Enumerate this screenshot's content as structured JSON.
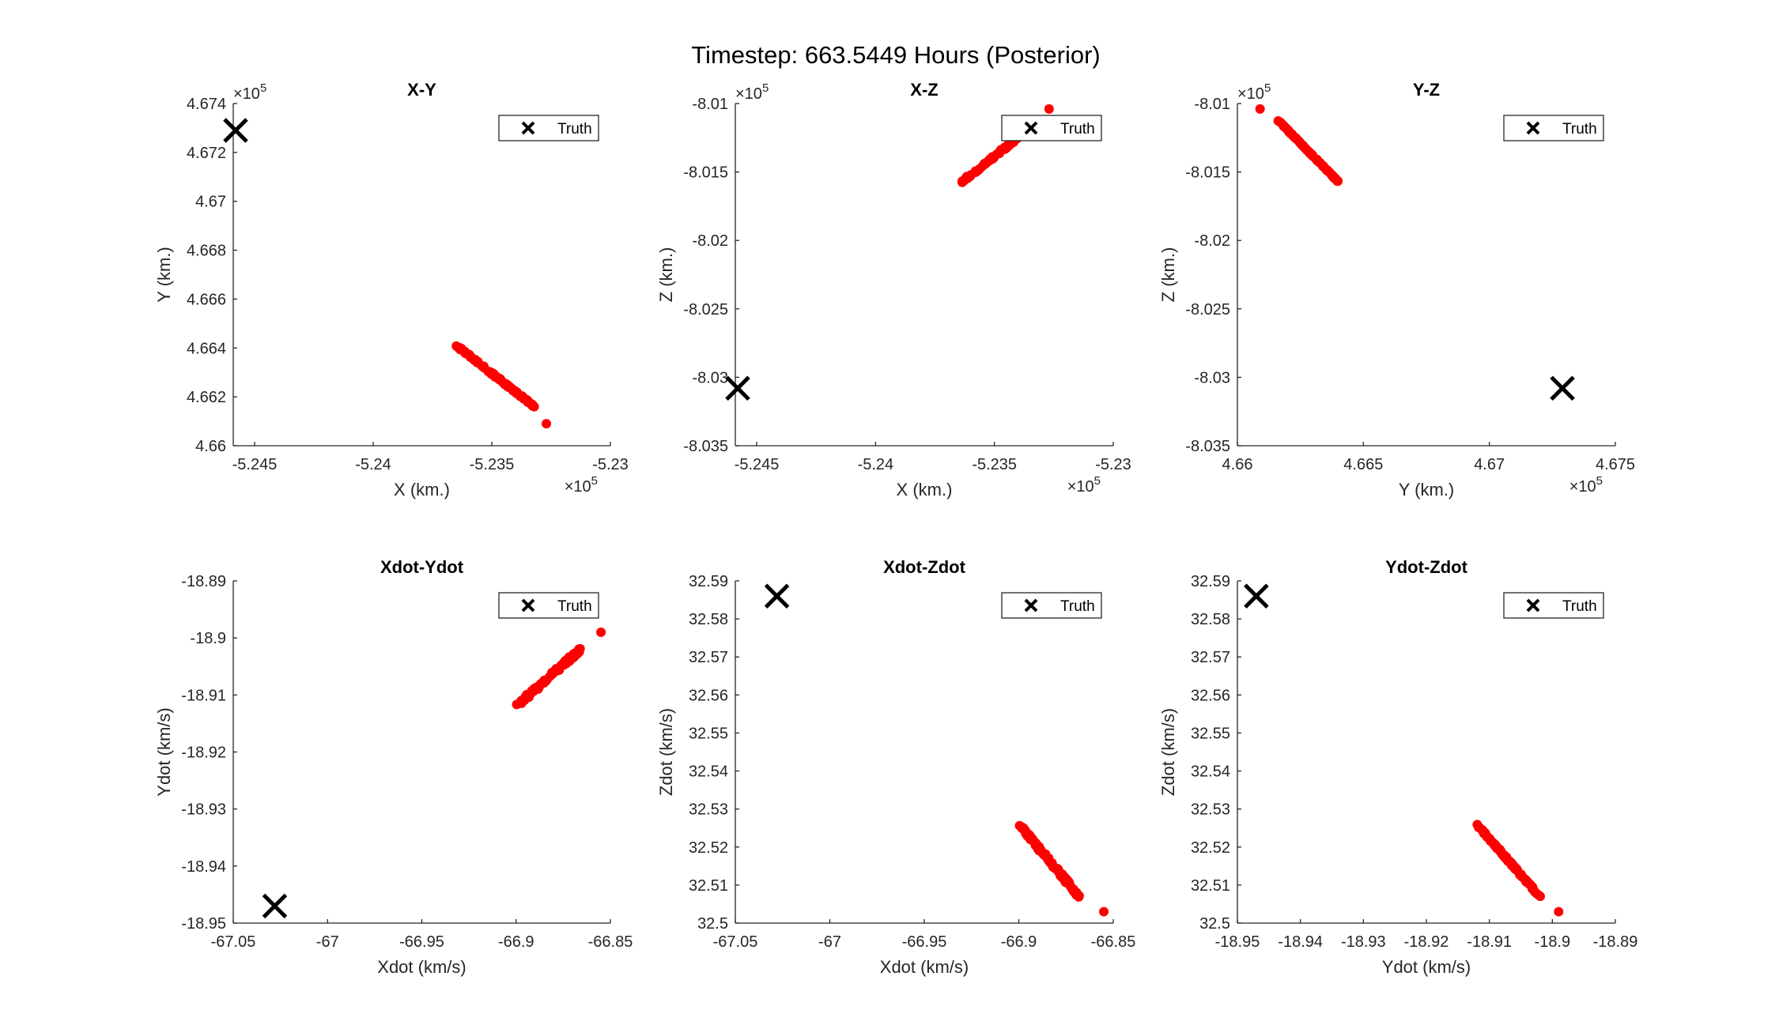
{
  "figure_title": "Timestep: 663.5449 Hours (Posterior)",
  "colors": {
    "particles": "#ff0000",
    "truth": "#000000",
    "axes": "#262626"
  },
  "legend_marker": "x-cross",
  "chart_data": [
    {
      "type": "scatter",
      "title": "X-Y",
      "xlabel": "X (km.)",
      "ylabel": "Y (km.)",
      "x_exponent": "5",
      "y_exponent": "5",
      "xlim": [
        -5.2459,
        -5.23
      ],
      "ylim": [
        4.66,
        4.674
      ],
      "xticks": [
        -5.245,
        -5.24,
        -5.235,
        -5.23
      ],
      "xtick_labels": [
        "-5.245",
        "-5.24",
        "-5.235",
        "-5.23"
      ],
      "yticks": [
        4.66,
        4.662,
        4.664,
        4.666,
        4.668,
        4.67,
        4.672,
        4.674
      ],
      "ytick_labels": [
        "4.66",
        "4.662",
        "4.664",
        "4.666",
        "4.668",
        "4.67",
        "4.672",
        "4.674"
      ],
      "legend": [
        "Truth"
      ],
      "legend_location": "top-right",
      "truth": [
        -5.2458,
        4.6729
      ],
      "particles": {
        "from": [
          -5.2365,
          4.6641
        ],
        "to": [
          -5.2332,
          4.6616
        ],
        "spread": 3.5e-05,
        "count": 90,
        "outliers": [
          [
            -5.2327,
            4.6609
          ]
        ]
      }
    },
    {
      "type": "scatter",
      "title": "X-Z",
      "xlabel": "X (km.)",
      "ylabel": "Z (km.)",
      "x_exponent": "5",
      "y_exponent": "5",
      "xlim": [
        -5.2459,
        -5.23
      ],
      "ylim": [
        -8.035,
        -8.01
      ],
      "xticks": [
        -5.245,
        -5.24,
        -5.235,
        -5.23
      ],
      "xtick_labels": [
        "-5.245",
        "-5.24",
        "-5.235",
        "-5.23"
      ],
      "yticks": [
        -8.035,
        -8.03,
        -8.025,
        -8.02,
        -8.015,
        -8.01
      ],
      "ytick_labels": [
        "-8.035",
        "-8.03",
        "-8.025",
        "-8.02",
        "-8.015",
        "-8.01"
      ],
      "legend": [
        "Truth"
      ],
      "legend_location": "top-right",
      "truth": [
        -5.2458,
        -8.0308
      ],
      "particles": {
        "from": [
          -5.2365,
          -8.0159
        ],
        "to": [
          -5.2335,
          -8.0118
        ],
        "spread": 6e-05,
        "count": 90,
        "outliers": [
          [
            -5.2327,
            -8.0104
          ]
        ]
      }
    },
    {
      "type": "scatter",
      "title": "Y-Z",
      "xlabel": "Y (km.)",
      "ylabel": "Z (km.)",
      "x_exponent": "5",
      "y_exponent": "5",
      "xlim": [
        4.66,
        4.675
      ],
      "ylim": [
        -8.035,
        -8.01
      ],
      "xticks": [
        4.66,
        4.665,
        4.67,
        4.675
      ],
      "xtick_labels": [
        "4.66",
        "4.665",
        "4.67",
        "4.675"
      ],
      "yticks": [
        -8.035,
        -8.03,
        -8.025,
        -8.02,
        -8.015,
        -8.01
      ],
      "ytick_labels": [
        "-8.035",
        "-8.03",
        "-8.025",
        "-8.02",
        "-8.015",
        "-8.01"
      ],
      "legend": [
        "Truth"
      ],
      "legend_location": "top-right",
      "truth": [
        4.6729,
        -8.0308
      ],
      "particles": {
        "from": [
          4.6616,
          -8.0112
        ],
        "to": [
          4.6641,
          -8.0159
        ],
        "spread": 2e-05,
        "count": 90,
        "outliers": [
          [
            4.6609,
            -8.0104
          ]
        ]
      }
    },
    {
      "type": "scatter",
      "title": "Xdot-Ydot",
      "xlabel": "Xdot (km/s)",
      "ylabel": "Ydot (km/s)",
      "x_exponent": "",
      "y_exponent": "",
      "xlim": [
        -67.05,
        -66.85
      ],
      "ylim": [
        -18.95,
        -18.89
      ],
      "xticks": [
        -67.05,
        -67,
        -66.95,
        -66.9,
        -66.85
      ],
      "xtick_labels": [
        "-67.05",
        "-67",
        "-66.95",
        "-66.9",
        "-66.85"
      ],
      "yticks": [
        -18.95,
        -18.94,
        -18.93,
        -18.92,
        -18.91,
        -18.9,
        -18.89
      ],
      "ytick_labels": [
        "-18.95",
        "-18.94",
        "-18.93",
        "-18.92",
        "-18.91",
        "-18.9",
        "-18.89"
      ],
      "legend": [
        "Truth"
      ],
      "legend_location": "top-right",
      "truth": [
        -67.028,
        -18.947
      ],
      "particles": {
        "from": [
          -66.9,
          -18.912
        ],
        "to": [
          -66.866,
          -18.902
        ],
        "spread": 0.0004,
        "count": 90,
        "outliers": [
          [
            -66.855,
            -18.899
          ]
        ]
      }
    },
    {
      "type": "scatter",
      "title": "Xdot-Zdot",
      "xlabel": "Xdot (km/s)",
      "ylabel": "Zdot (km/s)",
      "x_exponent": "",
      "y_exponent": "",
      "xlim": [
        -67.05,
        -66.85
      ],
      "ylim": [
        32.5,
        32.59
      ],
      "xticks": [
        -67.05,
        -67,
        -66.95,
        -66.9,
        -66.85
      ],
      "xtick_labels": [
        "-67.05",
        "-67",
        "-66.95",
        "-66.9",
        "-66.85"
      ],
      "yticks": [
        32.5,
        32.51,
        32.52,
        32.53,
        32.54,
        32.55,
        32.56,
        32.57,
        32.58,
        32.59
      ],
      "ytick_labels": [
        "32.5",
        "32.51",
        "32.52",
        "32.53",
        "32.54",
        "32.55",
        "32.56",
        "32.57",
        "32.58",
        "32.59"
      ],
      "legend": [
        "Truth"
      ],
      "legend_location": "top-right",
      "truth": [
        -67.028,
        32.586
      ],
      "particles": {
        "from": [
          -66.9,
          32.526
        ],
        "to": [
          -66.868,
          32.507
        ],
        "spread": 0.0005,
        "count": 90,
        "outliers": [
          [
            -66.855,
            32.503
          ]
        ]
      }
    },
    {
      "type": "scatter",
      "title": "Ydot-Zdot",
      "xlabel": "Ydot (km/s)",
      "ylabel": "Zdot (km/s)",
      "x_exponent": "",
      "y_exponent": "",
      "xlim": [
        -18.95,
        -18.89
      ],
      "ylim": [
        32.5,
        32.59
      ],
      "xticks": [
        -18.95,
        -18.94,
        -18.93,
        -18.92,
        -18.91,
        -18.9,
        -18.89
      ],
      "xtick_labels": [
        "-18.95",
        "-18.94",
        "-18.93",
        "-18.92",
        "-18.91",
        "-18.9",
        "-18.89"
      ],
      "yticks": [
        32.5,
        32.51,
        32.52,
        32.53,
        32.54,
        32.55,
        32.56,
        32.57,
        32.58,
        32.59
      ],
      "ytick_labels": [
        "32.5",
        "32.51",
        "32.52",
        "32.53",
        "32.54",
        "32.55",
        "32.56",
        "32.57",
        "32.58",
        "32.59"
      ],
      "legend": [
        "Truth"
      ],
      "legend_location": "top-right",
      "truth": [
        -18.947,
        32.586
      ],
      "particles": {
        "from": [
          -18.912,
          32.526
        ],
        "to": [
          -18.902,
          32.507
        ],
        "spread": 0.00015,
        "count": 90,
        "outliers": [
          [
            -18.899,
            32.503
          ]
        ]
      }
    }
  ]
}
